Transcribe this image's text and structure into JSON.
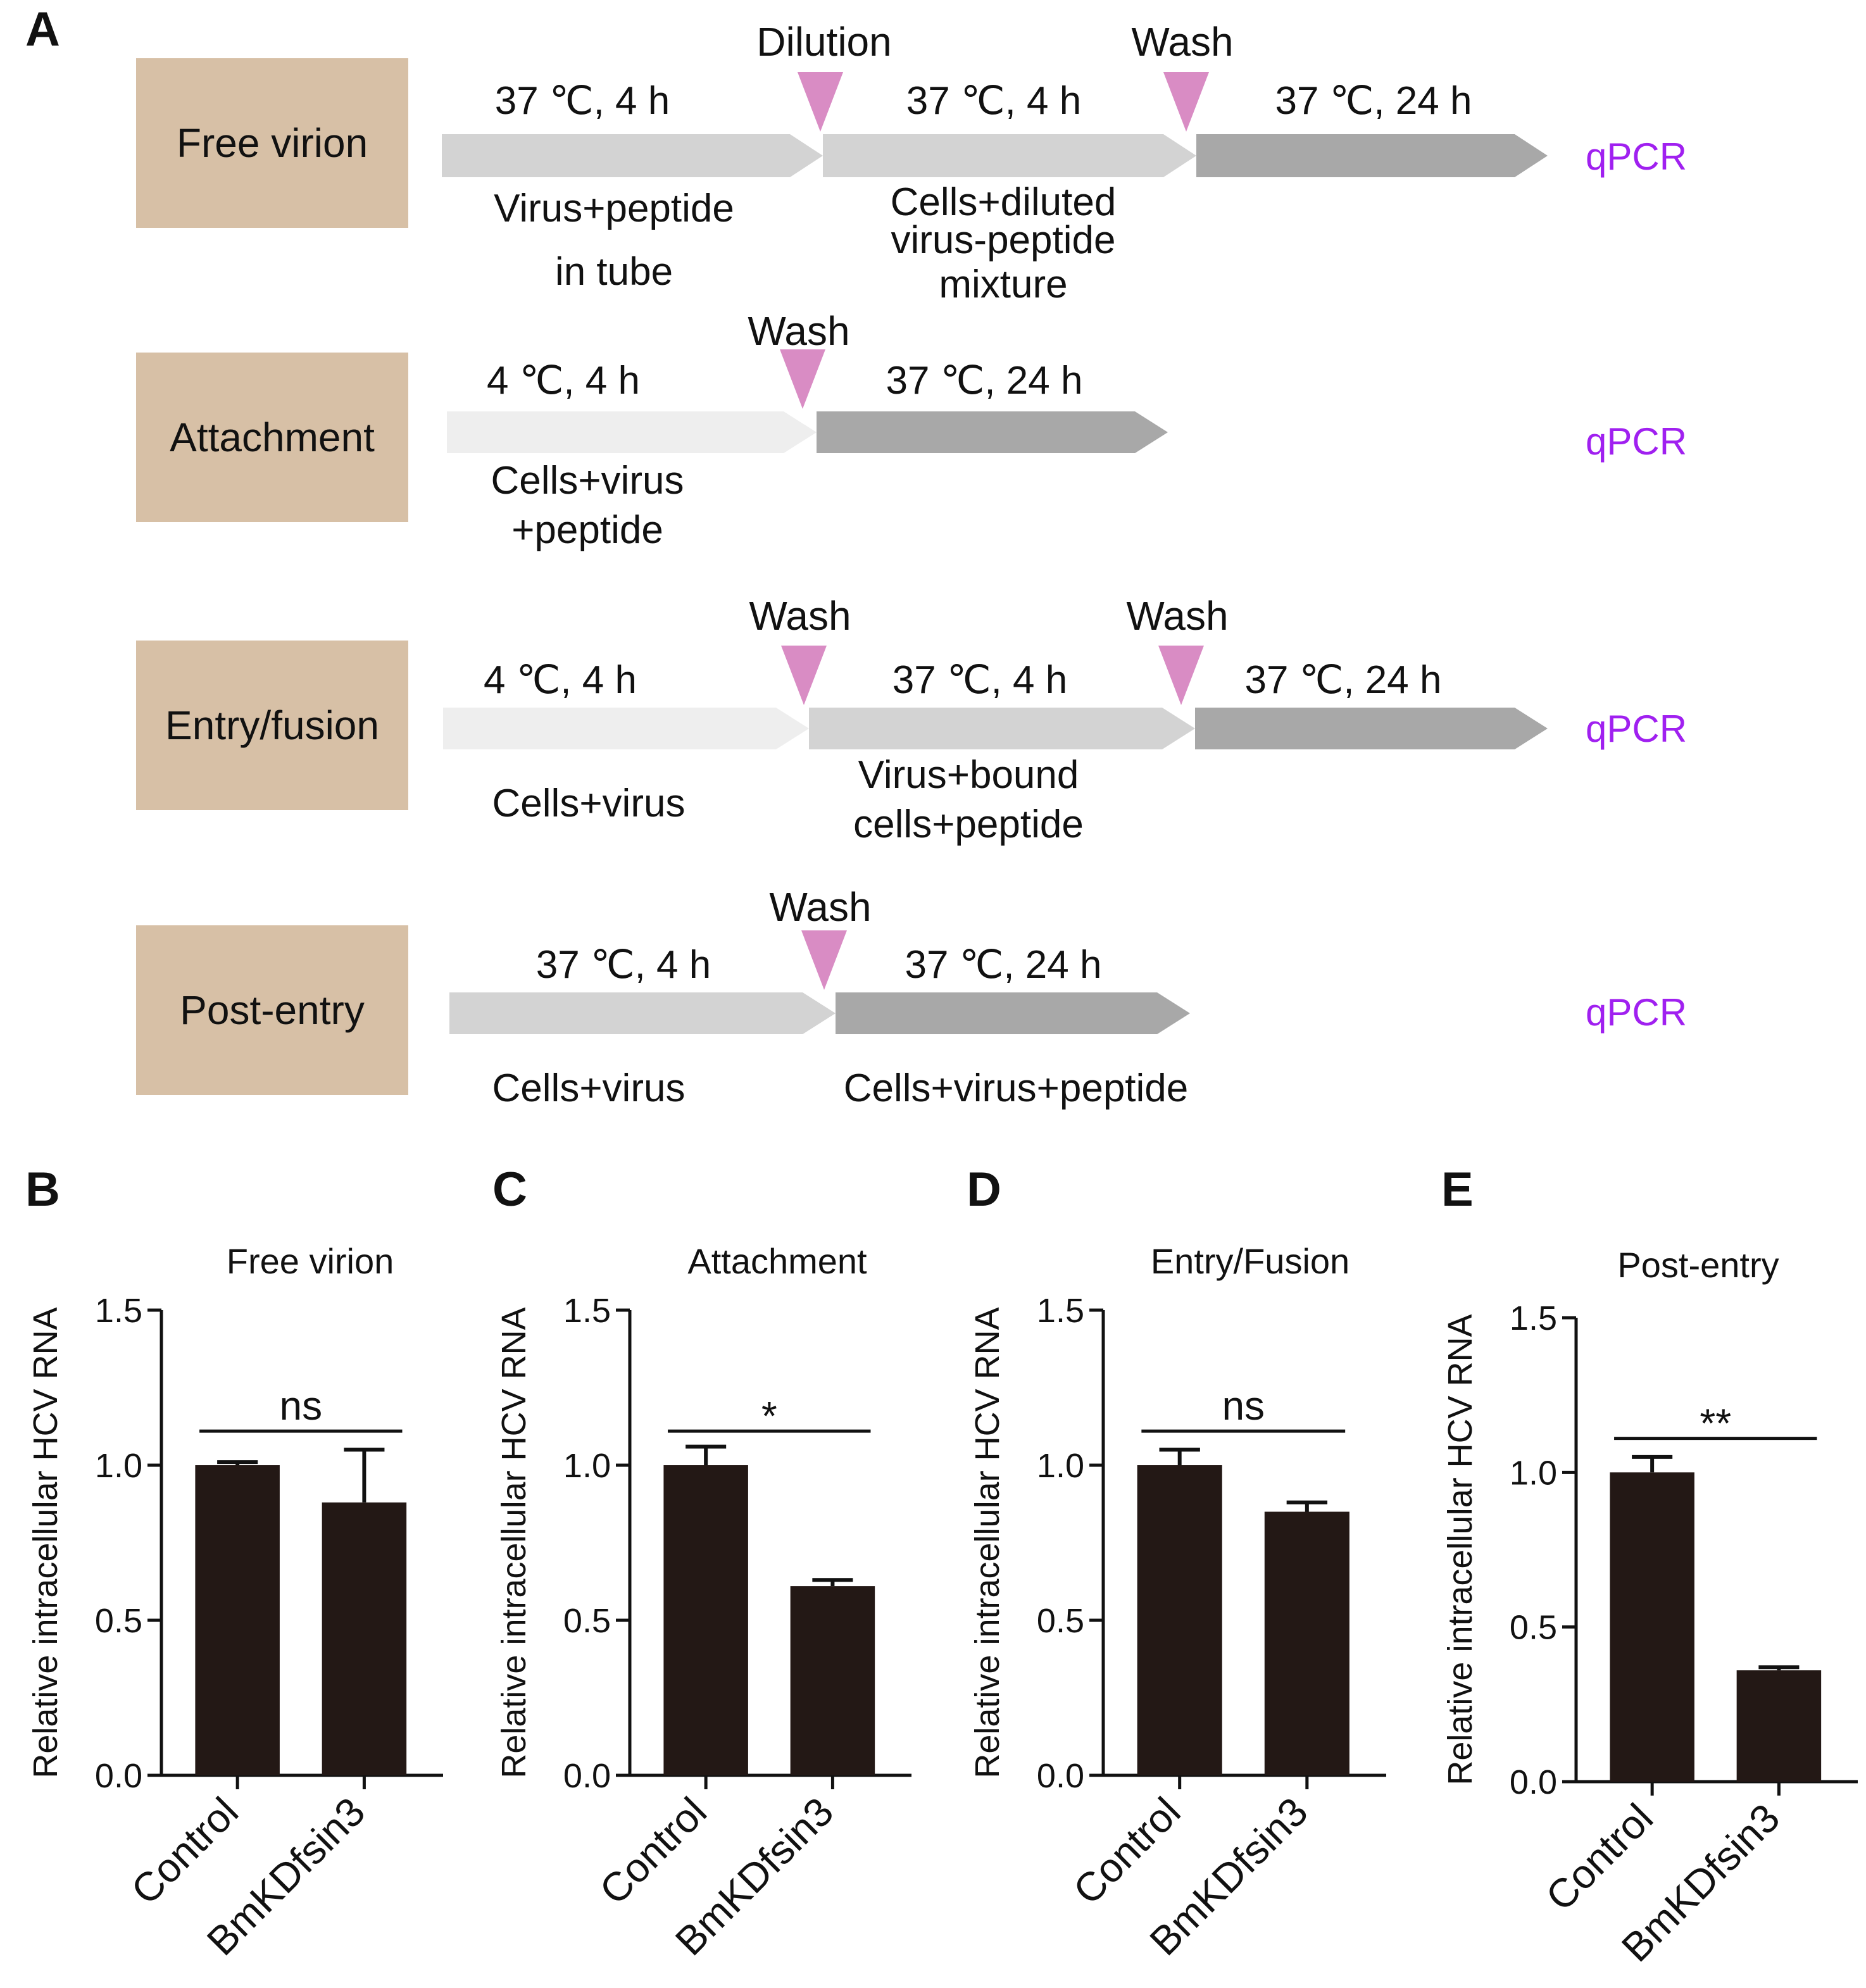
{
  "panel_a": {
    "letter": "A",
    "colors": {
      "stage_box": "#D7C0A6",
      "arrow_light": "#EEEEEE",
      "arrow_mid": "#D3D3D3",
      "arrow_dark": "#A8A8A8",
      "marker": "#D98CC4",
      "qpcr": "#A020F0"
    },
    "rows": [
      {
        "stage": "Free virion",
        "qpcr": "qPCR",
        "markers": [
          "Dilution",
          "Wash"
        ],
        "steps": [
          {
            "condition": "37 ℃,  4 h",
            "desc": [
              "Virus+peptide",
              "in tube"
            ]
          },
          {
            "condition": "37 ℃,  4 h",
            "desc": [
              "Cells+diluted",
              "virus-peptide",
              "mixture"
            ]
          },
          {
            "condition": "37 ℃,  24 h",
            "desc": []
          }
        ]
      },
      {
        "stage": "Attachment",
        "qpcr": "qPCR",
        "markers": [
          "Wash"
        ],
        "steps": [
          {
            "condition": "4 ℃,  4 h",
            "desc": [
              "Cells+virus",
              "+peptide"
            ]
          },
          {
            "condition": "37 ℃,  24 h",
            "desc": []
          }
        ]
      },
      {
        "stage": "Entry/fusion",
        "qpcr": "qPCR",
        "markers": [
          "Wash",
          "Wash"
        ],
        "steps": [
          {
            "condition": "4 ℃,  4 h",
            "desc": [
              "Cells+virus"
            ]
          },
          {
            "condition": "37 ℃,  4 h",
            "desc": [
              "Virus+bound",
              "cells+peptide"
            ]
          },
          {
            "condition": "37 ℃,  24 h",
            "desc": []
          }
        ]
      },
      {
        "stage": "Post-entry",
        "qpcr": "qPCR",
        "markers": [
          "Wash"
        ],
        "steps": [
          {
            "condition": "37 ℃,  4 h",
            "desc": [
              "Cells+virus"
            ]
          },
          {
            "condition": "37 ℃,  24 h",
            "desc": [
              "Cells+virus+peptide"
            ]
          }
        ]
      }
    ]
  },
  "chart_data": [
    {
      "panel": "B",
      "type": "bar",
      "title": "Free virion",
      "ylabel": "Relative intracellular HCV RNA",
      "categories": [
        "Control",
        "BmKDfsin3"
      ],
      "values": [
        1.0,
        0.88
      ],
      "errors": [
        0.01,
        0.17
      ],
      "ylim": [
        0,
        1.5
      ],
      "yticks": [
        "0.0",
        "0.5",
        "1.0",
        "1.5"
      ],
      "significance": "ns"
    },
    {
      "panel": "C",
      "type": "bar",
      "title": "Attachment",
      "ylabel": "Relative intracellular HCV RNA",
      "categories": [
        "Control",
        "BmKDfsin3"
      ],
      "values": [
        1.0,
        0.61
      ],
      "errors": [
        0.06,
        0.02
      ],
      "ylim": [
        0,
        1.5
      ],
      "yticks": [
        "0.0",
        "0.5",
        "1.0",
        "1.5"
      ],
      "significance": "*"
    },
    {
      "panel": "D",
      "type": "bar",
      "title": "Entry/Fusion",
      "ylabel": "Relative intracellular HCV RNA",
      "categories": [
        "Control",
        "BmKDfsin3"
      ],
      "values": [
        1.0,
        0.85
      ],
      "errors": [
        0.05,
        0.03
      ],
      "ylim": [
        0,
        1.5
      ],
      "yticks": [
        "0.0",
        "0.5",
        "1.0",
        "1.5"
      ],
      "significance": "ns"
    },
    {
      "panel": "E",
      "type": "bar",
      "title": "Post-entry",
      "ylabel": "Relative intracellular HCV RNA",
      "categories": [
        "Control",
        "BmKDfsin3"
      ],
      "values": [
        1.0,
        0.36
      ],
      "errors": [
        0.05,
        0.01
      ],
      "ylim": [
        0,
        1.5
      ],
      "yticks": [
        "0.0",
        "0.5",
        "1.0",
        "1.5"
      ],
      "significance": "**"
    }
  ],
  "bar_color": "#231815"
}
